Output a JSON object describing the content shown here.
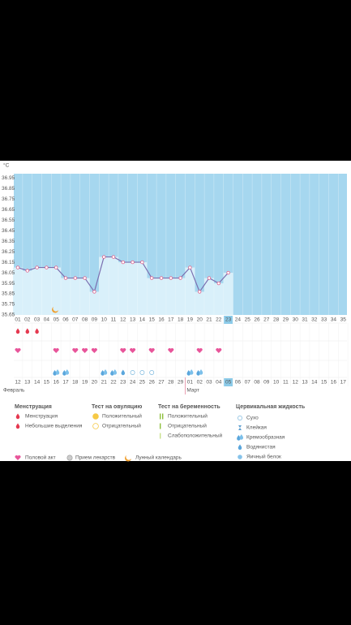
{
  "chart_data": {
    "type": "line",
    "y_label": "°C",
    "categories": [
      "01",
      "02",
      "03",
      "04",
      "05",
      "06",
      "07",
      "08",
      "09",
      "10",
      "11",
      "12",
      "13",
      "14",
      "15",
      "16",
      "17",
      "18",
      "19",
      "20",
      "21",
      "22",
      "23",
      "24",
      "25",
      "26",
      "27",
      "28",
      "29",
      "30",
      "31",
      "32",
      "33",
      "34",
      "35"
    ],
    "series": [
      {
        "color": "#7b6fb0",
        "values": [
          36.1,
          36.07,
          36.1,
          36.1,
          36.1,
          36.0,
          36.0,
          36.0,
          35.87,
          36.2,
          36.2,
          36.15,
          36.15,
          36.15,
          36.0,
          36.0,
          36.0,
          36.0,
          36.1,
          35.87,
          36.0,
          35.95,
          36.05,
          null,
          null,
          null,
          null,
          null,
          null,
          null,
          null,
          null,
          null,
          null,
          null
        ]
      }
    ],
    "ylim": [
      35.65,
      36.99
    ],
    "yticks": [
      35.65,
      35.75,
      35.85,
      35.95,
      36.05,
      36.15,
      36.25,
      36.35,
      36.45,
      36.55,
      36.65,
      36.75,
      36.85,
      36.95
    ],
    "today": 22
  },
  "dates": [
    {
      "label": "12"
    },
    {
      "label": "13"
    },
    {
      "label": "14"
    },
    {
      "label": "15",
      "weekend": true
    },
    {
      "label": "16",
      "weekend": true
    },
    {
      "label": "17"
    },
    {
      "label": "18"
    },
    {
      "label": "19"
    },
    {
      "label": "20"
    },
    {
      "label": "21"
    },
    {
      "label": "22",
      "weekend": true
    },
    {
      "label": "23",
      "weekend": true
    },
    {
      "label": "24"
    },
    {
      "label": "25"
    },
    {
      "label": "26"
    },
    {
      "label": "27"
    },
    {
      "label": "28"
    },
    {
      "label": "29",
      "weekend": true
    },
    {
      "label": "01",
      "weekend": true
    },
    {
      "label": "02"
    },
    {
      "label": "03"
    },
    {
      "label": "04"
    },
    {
      "label": "05"
    },
    {
      "label": "06"
    },
    {
      "label": "07",
      "weekend": true
    },
    {
      "label": "08",
      "weekend": true
    },
    {
      "label": "09"
    },
    {
      "label": "10"
    },
    {
      "label": "11"
    },
    {
      "label": "12"
    },
    {
      "label": "13"
    },
    {
      "label": "14",
      "weekend": true
    },
    {
      "label": "15",
      "weekend": true
    },
    {
      "label": "16"
    },
    {
      "label": "17"
    }
  ],
  "months": [
    {
      "label": "Февраль",
      "col": 0
    },
    {
      "label": "Март",
      "col": 18
    }
  ],
  "menstruation_cols": [
    0,
    1,
    2
  ],
  "intercourse_cols": [
    0,
    4,
    6,
    7,
    8,
    11,
    12,
    14,
    16,
    19,
    21
  ],
  "fluid": [
    {
      "col": 4,
      "kind": 2
    },
    {
      "col": 5,
      "kind": 2
    },
    {
      "col": 9,
      "kind": 2
    },
    {
      "col": 10,
      "kind": 2
    },
    {
      "col": 11,
      "kind": 3
    },
    {
      "col": 12,
      "kind": 0
    },
    {
      "col": 13,
      "kind": 0
    },
    {
      "col": 14,
      "kind": 0
    },
    {
      "col": 18,
      "kind": 2
    },
    {
      "col": 19,
      "kind": 2
    }
  ],
  "legend": {
    "menstruation": {
      "title": "Менструация",
      "items": [
        "Менструация",
        "Небольшие выделения"
      ]
    },
    "ovulation": {
      "title": "Тест на овуляцию",
      "items": [
        "Положительный",
        "Отрицательный"
      ]
    },
    "pregnancy": {
      "title": "Тест на беременность",
      "items": [
        "Положительный",
        "Отрицательный",
        "Слабоположительный"
      ]
    },
    "cervical": {
      "title": "Цервикальная жидкость",
      "items": [
        "Сухо",
        "Клейкая",
        "Кремообразная",
        "Водянистая",
        "Яичный белок"
      ]
    },
    "bottom": [
      "Половой акт",
      "Прием лекарств",
      "Лунный календарь"
    ]
  }
}
